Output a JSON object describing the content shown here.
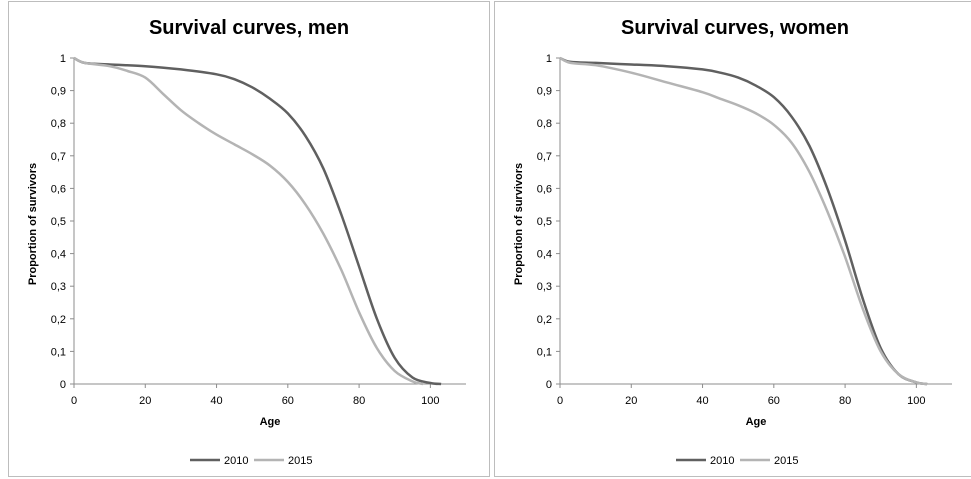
{
  "chart_data": [
    {
      "type": "line",
      "title": "Survival curves, men",
      "xlabel": "Age",
      "ylabel": "Proportion of survivors",
      "xlim": [
        0,
        110
      ],
      "ylim": [
        0,
        1
      ],
      "x_ticks": [
        "0",
        "20",
        "40",
        "60",
        "80",
        "100"
      ],
      "y_ticks": [
        "0",
        "0,1",
        "0,2",
        "0,3",
        "0,4",
        "0,5",
        "0,6",
        "0,7",
        "0,8",
        "0,9",
        "1"
      ],
      "grid": false,
      "legend_position": "bottom",
      "series": [
        {
          "name": "2010",
          "color": "#606060",
          "x": [
            0,
            3,
            10,
            20,
            30,
            40,
            45,
            50,
            55,
            60,
            65,
            70,
            75,
            80,
            85,
            90,
            95,
            100,
            103
          ],
          "y": [
            1.0,
            0.985,
            0.98,
            0.975,
            0.965,
            0.95,
            0.935,
            0.91,
            0.875,
            0.83,
            0.76,
            0.66,
            0.52,
            0.36,
            0.2,
            0.08,
            0.02,
            0.003,
            0.0
          ]
        },
        {
          "name": "2015",
          "color": "#b4b4b4",
          "x": [
            0,
            3,
            10,
            15,
            20,
            25,
            30,
            35,
            40,
            45,
            50,
            55,
            60,
            65,
            70,
            75,
            80,
            85,
            90,
            95,
            98
          ],
          "y": [
            1.0,
            0.985,
            0.975,
            0.96,
            0.94,
            0.89,
            0.84,
            0.8,
            0.765,
            0.735,
            0.705,
            0.67,
            0.62,
            0.55,
            0.46,
            0.35,
            0.22,
            0.11,
            0.04,
            0.008,
            0.0
          ]
        }
      ]
    },
    {
      "type": "line",
      "title": "Survival curves, women",
      "xlabel": "Age",
      "ylabel": "Proportion of survivors",
      "xlim": [
        0,
        110
      ],
      "ylim": [
        0,
        1
      ],
      "x_ticks": [
        "0",
        "20",
        "40",
        "60",
        "80",
        "100"
      ],
      "y_ticks": [
        "0",
        "0,1",
        "0,2",
        "0,3",
        "0,4",
        "0,5",
        "0,6",
        "0,7",
        "0,8",
        "0,9",
        "1"
      ],
      "grid": false,
      "legend_position": "bottom",
      "series": [
        {
          "name": "2010",
          "color": "#606060",
          "x": [
            0,
            3,
            10,
            20,
            30,
            40,
            45,
            50,
            55,
            60,
            65,
            70,
            75,
            80,
            85,
            90,
            95,
            100,
            103
          ],
          "y": [
            1.0,
            0.988,
            0.985,
            0.98,
            0.975,
            0.965,
            0.955,
            0.94,
            0.915,
            0.88,
            0.82,
            0.73,
            0.6,
            0.44,
            0.26,
            0.11,
            0.03,
            0.005,
            0.0
          ]
        },
        {
          "name": "2015",
          "color": "#b4b4b4",
          "x": [
            0,
            3,
            10,
            20,
            30,
            40,
            45,
            50,
            55,
            60,
            65,
            70,
            75,
            80,
            85,
            90,
            95,
            100,
            103
          ],
          "y": [
            1.0,
            0.985,
            0.978,
            0.955,
            0.925,
            0.895,
            0.875,
            0.855,
            0.83,
            0.795,
            0.74,
            0.65,
            0.53,
            0.39,
            0.23,
            0.1,
            0.03,
            0.005,
            0.0
          ]
        }
      ]
    }
  ]
}
